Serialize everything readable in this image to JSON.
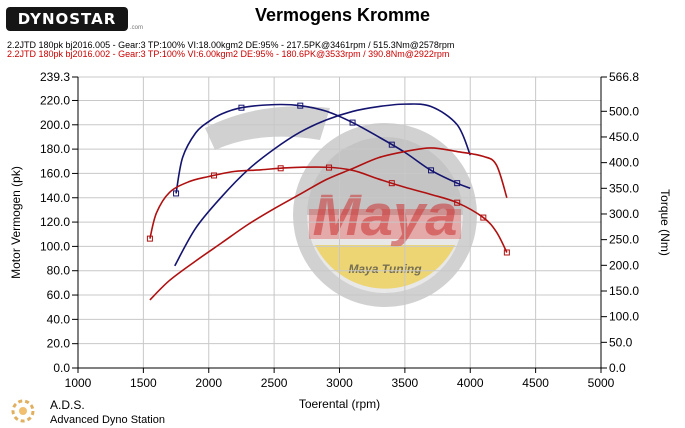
{
  "header": {
    "brand": "DYNOSTAR",
    "brand_small": ".com",
    "title": "Vermogens Kromme",
    "runs": [
      "2.2JTD 180pk bj2016.005 - Gear:3 TP:100% VI:18.00kgm2 DE:95%   - 217.5PK@3461rpm / 515.3Nm@2578rpm",
      "2.2JTD 180pk bj2016.002 - Gear:3 TP:100% VI:6.00kgm2 DE:95%   - 180.6PK@3533rpm / 390.8Nm@2922rpm"
    ]
  },
  "watermark": {
    "brand": "Maya",
    "subtitle": "Maya Tuning"
  },
  "footer": {
    "ads": "A.D.S.",
    "ads_full": "Advanced Dyno Station"
  },
  "colors": {
    "run1": "#141470",
    "run2": "#b01010",
    "grid": "#c8c8c8"
  },
  "chart_data": {
    "type": "line",
    "title": "Vermogens Kromme",
    "xlabel": "Toerental (rpm)",
    "ylabel": "Motor Vermogen (pk)",
    "y2label": "Torque (Nm)",
    "xlim": [
      1000,
      5000
    ],
    "ylim": [
      0,
      239.3
    ],
    "y2lim": [
      0,
      566.8
    ],
    "xticks": [
      "1000",
      "1500",
      "2000",
      "2500",
      "3000",
      "3500",
      "4000",
      "4500",
      "5000"
    ],
    "yticks": [
      "0.0",
      "20.0",
      "40.0",
      "60.0",
      "80.0",
      "100.0",
      "120.0",
      "140.0",
      "160.0",
      "180.0",
      "200.0",
      "220.0",
      "239.3"
    ],
    "y2ticks": [
      "0.0",
      "50.0",
      "100.0",
      "150.0",
      "200.0",
      "250.0",
      "300.0",
      "350.0",
      "400.0",
      "450.0",
      "500.0",
      "566.8"
    ],
    "grid": true,
    "series": [
      {
        "name": "2.2JTD 180pk bj2016.005 power",
        "axis": "left",
        "color": "#141470",
        "x": [
          1740,
          1900,
          2100,
          2300,
          2500,
          2700,
          2900,
          3100,
          3300,
          3500,
          3700,
          3900,
          4000
        ],
        "y": [
          84,
          115,
          141,
          163,
          180,
          194,
          204,
          211,
          215,
          217,
          215,
          200,
          175
        ],
        "markers": []
      },
      {
        "name": "2.2JTD 180pk bj2016.005 torque",
        "axis": "right",
        "color": "#141470",
        "x": [
          1750,
          1800,
          1900,
          2000,
          2100,
          2250,
          2500,
          2700,
          2900,
          3100,
          3300,
          3500,
          3700,
          3900,
          4000
        ],
        "y": [
          340,
          410,
          458,
          480,
          495,
          507,
          513,
          511,
          500,
          478,
          450,
          420,
          385,
          360,
          350
        ],
        "markers": [
          1750,
          2250,
          2700,
          3100,
          3400,
          3700,
          3900
        ]
      },
      {
        "name": "2.2JTD 180pk bj2016.002 power",
        "axis": "left",
        "color": "#b01010",
        "x": [
          1550,
          1700,
          1900,
          2100,
          2300,
          2500,
          2700,
          2900,
          3100,
          3300,
          3500,
          3700,
          3900,
          4100,
          4200,
          4280
        ],
        "y": [
          56,
          72,
          88,
          103,
          118,
          131,
          143,
          155,
          164,
          173,
          178,
          181,
          178,
          174,
          167,
          140
        ],
        "markers": []
      },
      {
        "name": "2.2JTD 180pk bj2016.002 torque",
        "axis": "right",
        "color": "#b01010",
        "x": [
          1550,
          1600,
          1700,
          1850,
          2000,
          2200,
          2400,
          2600,
          2900,
          3100,
          3300,
          3500,
          3700,
          3900,
          4100,
          4200,
          4280
        ],
        "y": [
          252,
          302,
          342,
          363,
          373,
          383,
          386,
          390,
          391,
          385,
          368,
          352,
          338,
          322,
          293,
          265,
          225
        ],
        "markers": [
          1550,
          2040,
          2550,
          2920,
          3400,
          3900,
          4100,
          4280
        ]
      }
    ]
  }
}
